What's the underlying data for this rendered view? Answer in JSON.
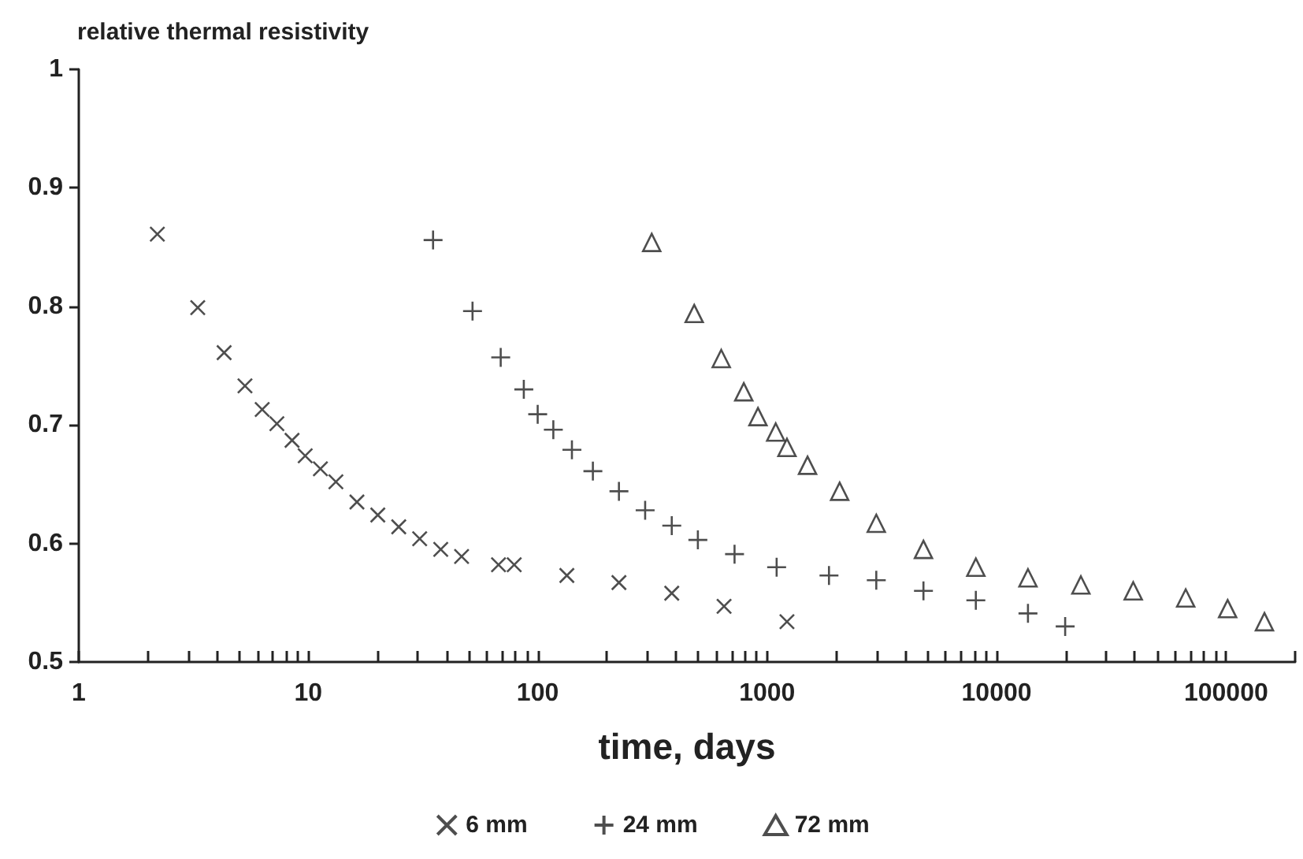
{
  "chart_data": {
    "type": "scatter",
    "ylabel": "relative thermal resistivity",
    "xlabel": "time, days",
    "log": "x",
    "grid": false,
    "legend": "bottom",
    "xlim": [
      1,
      200000
    ],
    "ylim": [
      0.5,
      1
    ],
    "xticks": [
      1,
      {
        "value": 2,
        "label": null
      },
      {
        "value": 3,
        "label": null
      },
      {
        "value": 4,
        "label": null
      },
      {
        "value": 5,
        "label": null
      },
      {
        "value": 6,
        "label": null
      },
      {
        "value": 7,
        "label": null
      },
      {
        "value": 8,
        "label": null
      },
      {
        "value": 9,
        "label": null
      },
      10,
      {
        "value": 20,
        "label": null
      },
      {
        "value": 30,
        "label": null
      },
      {
        "value": 40,
        "label": null
      },
      {
        "value": 50,
        "label": null
      },
      {
        "value": 60,
        "label": null
      },
      {
        "value": 70,
        "label": null
      },
      {
        "value": 80,
        "label": null
      },
      {
        "value": 90,
        "label": null
      },
      100,
      {
        "value": 200,
        "label": null
      },
      {
        "value": 300,
        "label": null
      },
      {
        "value": 400,
        "label": null
      },
      {
        "value": 500,
        "label": null
      },
      {
        "value": 600,
        "label": null
      },
      {
        "value": 700,
        "label": null
      },
      {
        "value": 800,
        "label": null
      },
      {
        "value": 900,
        "label": null
      },
      1000,
      {
        "value": 2000,
        "label": null
      },
      {
        "value": 3000,
        "label": null
      },
      {
        "value": 4000,
        "label": null
      },
      {
        "value": 5000,
        "label": null
      },
      {
        "value": 6000,
        "label": null
      },
      {
        "value": 7000,
        "label": null
      },
      {
        "value": 8000,
        "label": null
      },
      {
        "value": 9000,
        "label": null
      },
      10000,
      {
        "value": 20000,
        "label": null
      },
      {
        "value": 30000,
        "label": null
      },
      {
        "value": 40000,
        "label": null
      },
      {
        "value": 50000,
        "label": null
      },
      {
        "value": 60000,
        "label": null
      },
      {
        "value": 70000,
        "label": null
      },
      {
        "value": 80000,
        "label": null
      },
      {
        "value": 90000,
        "label": null
      },
      100000,
      {
        "value": 200000,
        "label": null
      }
    ],
    "yticks": [
      0.5,
      0.6,
      0.7,
      0.8,
      0.9,
      1
    ],
    "series": [
      {
        "name": "6 mm",
        "color": "#222222",
        "marker": "cross",
        "x": [
          2.2,
          3.3,
          4.3,
          5.3,
          6.3,
          7.3,
          8.5,
          9.7,
          11.3,
          13.2,
          16.3,
          20.1,
          24.8,
          30.6,
          37.8,
          46.6,
          67.5,
          79,
          134,
          226,
          384,
          649,
          1220
        ],
        "values": [
          0.861,
          0.799,
          0.761,
          0.733,
          0.713,
          0.701,
          0.687,
          0.674,
          0.663,
          0.652,
          0.635,
          0.624,
          0.614,
          0.604,
          0.595,
          0.589,
          0.582,
          0.582,
          0.573,
          0.567,
          0.558,
          0.547,
          0.534
        ]
      },
      {
        "name": "24 mm",
        "color": "#222222",
        "marker": "plus",
        "x": [
          35,
          52,
          69,
          87,
          100,
          117,
          141,
          174,
          226,
          294,
          384,
          499,
          721,
          1100,
          1860,
          2990,
          4800,
          8120,
          13700,
          19900
        ],
        "values": [
          0.856,
          0.796,
          0.757,
          0.73,
          0.709,
          0.696,
          0.679,
          0.661,
          0.644,
          0.628,
          0.615,
          0.603,
          0.591,
          0.58,
          0.573,
          0.569,
          0.56,
          0.552,
          0.541,
          0.53
        ]
      },
      {
        "name": "72 mm",
        "color": "#222222",
        "marker": "triangle",
        "x": [
          314,
          481,
          631,
          791,
          912,
          1090,
          1220,
          1500,
          2070,
          2990,
          4800,
          8120,
          13700,
          23300,
          39400,
          66700,
          101600,
          147000
        ],
        "values": [
          0.854,
          0.794,
          0.756,
          0.728,
          0.707,
          0.694,
          0.681,
          0.666,
          0.644,
          0.617,
          0.595,
          0.58,
          0.571,
          0.565,
          0.56,
          0.554,
          0.545,
          0.534
        ]
      }
    ]
  }
}
